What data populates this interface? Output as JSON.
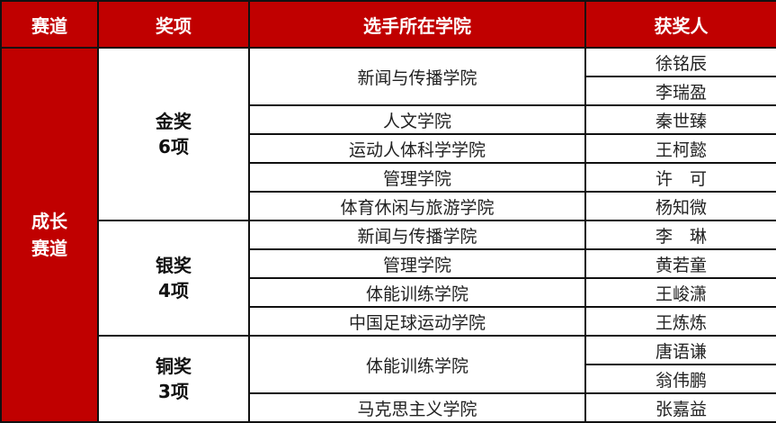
{
  "headers": [
    "赛道",
    "奖项",
    "选手所在学院",
    "获奖人"
  ],
  "track": {
    "line1": "成长",
    "line2": "赛道"
  },
  "awards": [
    {
      "name": "金奖",
      "count": "6项"
    },
    {
      "name": "银奖",
      "count": "4项"
    },
    {
      "name": "铜奖",
      "count": "3项"
    }
  ],
  "rows": [
    {
      "college": "新闻与传播学院",
      "winner": "徐铭辰"
    },
    {
      "college": "",
      "winner": "李瑞盈"
    },
    {
      "college": "人文学院",
      "winner": "秦世臻"
    },
    {
      "college": "运动人体科学学院",
      "winner": "王柯懿"
    },
    {
      "college": "管理学院",
      "winner": "许　可"
    },
    {
      "college": "体育休闲与旅游学院",
      "winner": "杨知微"
    },
    {
      "college": "新闻与传播学院",
      "winner": "李　琳"
    },
    {
      "college": "管理学院",
      "winner": "黄若童"
    },
    {
      "college": "体能训练学院",
      "winner": "王峻潇"
    },
    {
      "college": "中国足球运动学院",
      "winner": "王炼炼"
    },
    {
      "college": "体能训练学院",
      "winner": "唐语谦"
    },
    {
      "college": "",
      "winner": "翁伟鹏"
    },
    {
      "college": "马克思主义学院",
      "winner": "张嘉益"
    }
  ],
  "colors": {
    "header_bg": "#c00000",
    "header_text": "#ffffff",
    "border": "#111111"
  }
}
